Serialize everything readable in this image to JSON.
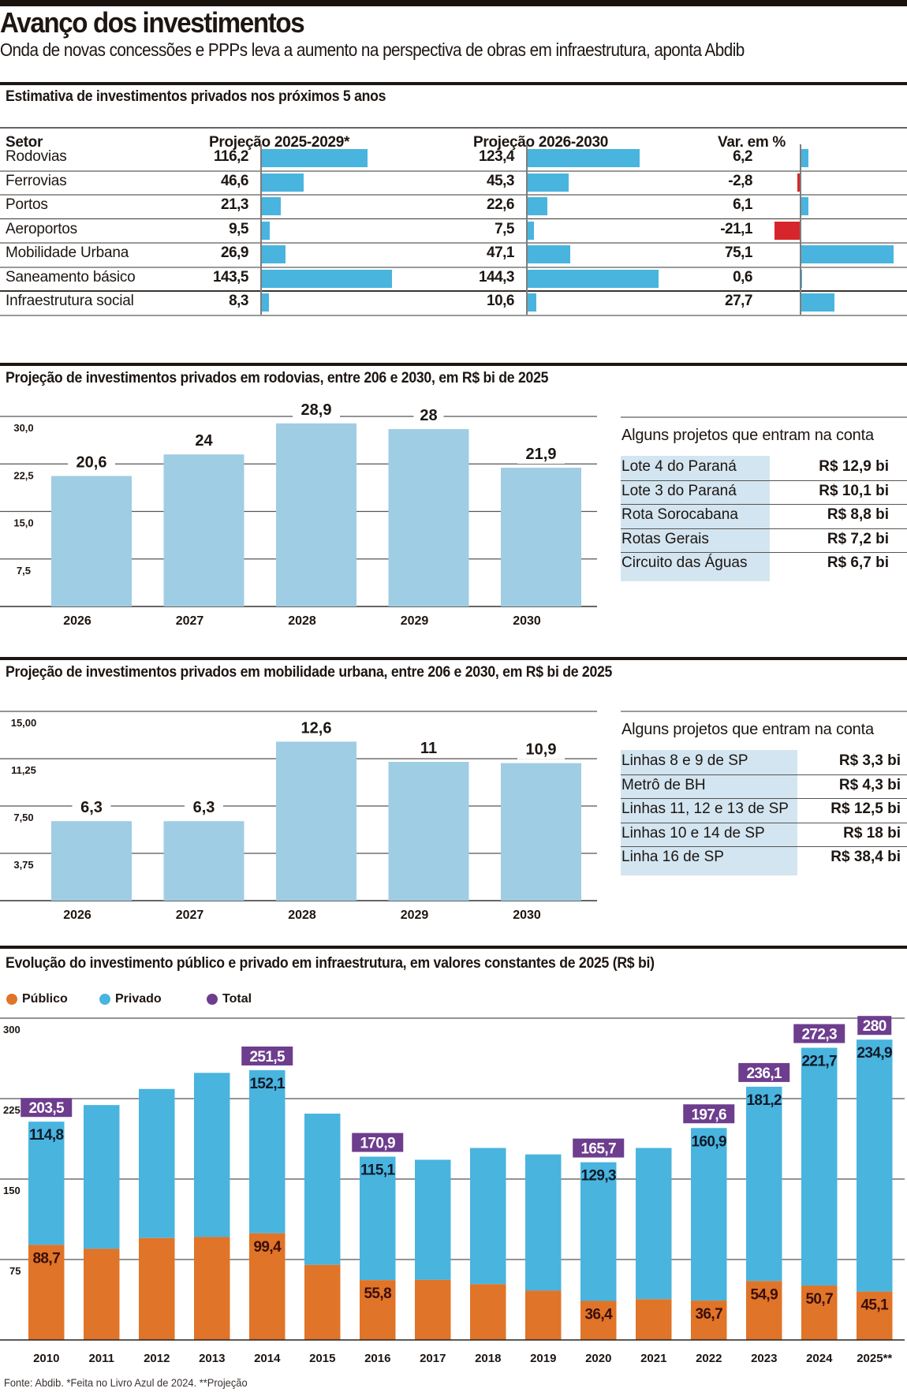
{
  "header": {
    "title": "Avanço dos investimentos",
    "subtitle": "Onda de novas concessões e PPPs leva a aumento na perspectiva de obras em infraestrutura, aponta Abdib"
  },
  "colors": {
    "table_bar": "#49b4de",
    "negative_bar": "#d7262b",
    "light_bar": "#9fcde4",
    "publico": "#e07428",
    "privado": "#49b4de",
    "total": "#6d3d8e",
    "project_bg": "#d3e5f0"
  },
  "sector_table": {
    "title": "Estimativa de investimentos privados nos próximos 5 anos",
    "headers": {
      "sector": "Setor",
      "proj1": "Projeção 2025-2029*",
      "proj2": "Projeção 2026-2030",
      "var": "Var. em %"
    },
    "rows": [
      {
        "sector": "Rodovias",
        "proj1": "116,2",
        "proj1_value": 116.2,
        "proj2": "123,4",
        "proj2_value": 123.4,
        "var": "6,2",
        "var_value": 6.2
      },
      {
        "sector": "Ferrovias",
        "proj1": "46,6",
        "proj1_value": 46.6,
        "proj2": "45,3",
        "proj2_value": 45.3,
        "var": "-2,8",
        "var_value": -2.8
      },
      {
        "sector": "Portos",
        "proj1": "21,3",
        "proj1_value": 21.3,
        "proj2": "22,6",
        "proj2_value": 22.6,
        "var": "6,1",
        "var_value": 6.1
      },
      {
        "sector": "Aeroportos",
        "proj1": "9,5",
        "proj1_value": 9.5,
        "proj2": "7,5",
        "proj2_value": 7.5,
        "var": "-21,1",
        "var_value": -21.1
      },
      {
        "sector": "Mobilidade Urbana",
        "proj1": "26,9",
        "proj1_value": 26.9,
        "proj2": "47,1",
        "proj2_value": 47.1,
        "var": "75,1",
        "var_value": 75.1
      },
      {
        "sector": "Saneamento básico",
        "proj1": "143,5",
        "proj1_value": 143.5,
        "proj2": "144,3",
        "proj2_value": 144.3,
        "var": "0,6",
        "var_value": 0.6
      },
      {
        "sector": "Infraestrutura social",
        "proj1": "8,3",
        "proj1_value": 8.3,
        "proj2": "10,6",
        "proj2_value": 10.6,
        "var": "27,7",
        "var_value": 27.7
      }
    ]
  },
  "rodovias_projects": {
    "heading": "Alguns projetos que entram na conta",
    "items": [
      {
        "name": "Lote 4 do Paraná",
        "value": "R$ 12,9 bi"
      },
      {
        "name": "Lote 3 do Paraná",
        "value": "R$ 10,1 bi"
      },
      {
        "name": "Rota Sorocabana",
        "value": "R$ 8,8 bi"
      },
      {
        "name": "Rotas Gerais",
        "value": "R$ 7,2 bi"
      },
      {
        "name": "Circuito das Águas",
        "value": "R$ 6,7 bi"
      }
    ]
  },
  "mobilidade_projects": {
    "heading": "Alguns projetos que entram na conta",
    "items": [
      {
        "name": "Linhas 8 e 9 de SP",
        "value": "R$ 3,3 bi"
      },
      {
        "name": "Metrô de BH",
        "value": "R$ 4,3 bi"
      },
      {
        "name": "Linhas 11, 12 e 13 de SP",
        "value": "R$ 12,5 bi"
      },
      {
        "name": "Linhas 10 e 14 de SP",
        "value": "R$ 18 bi"
      },
      {
        "name": "Linha 16 de SP",
        "value": "R$ 38,4 bi"
      }
    ]
  },
  "chart_data": [
    {
      "id": "rodovias",
      "type": "bar",
      "title": "Projeção de investimentos privados em rodovias, entre 206 e 2030, em R$ bi de 2025",
      "categories": [
        "2026",
        "2027",
        "2028",
        "2029",
        "2030"
      ],
      "values": [
        20.6,
        24,
        28.9,
        28,
        21.9
      ],
      "value_labels": [
        "20,6",
        "24",
        "28,9",
        "28",
        "21,9"
      ],
      "yticks": [
        7.5,
        15.0,
        22.5,
        30.0
      ],
      "ytick_labels": [
        "7,5",
        "15,0",
        "22,5",
        "30,0"
      ],
      "ylim": [
        0,
        30
      ],
      "xlabel": "",
      "ylabel": "",
      "grid": true
    },
    {
      "id": "mobilidade",
      "type": "bar",
      "title": "Projeção de investimentos privados em mobilidade urbana, entre 206 e 2030, em R$ bi de 2025",
      "categories": [
        "2026",
        "2027",
        "2028",
        "2029",
        "2030"
      ],
      "values": [
        6.3,
        6.3,
        12.6,
        11,
        10.9
      ],
      "value_labels": [
        "6,3",
        "6,3",
        "12,6",
        "11",
        "10,9"
      ],
      "yticks": [
        3.75,
        7.5,
        11.25,
        15.0
      ],
      "ytick_labels": [
        "3,75",
        "7,50",
        "11,25",
        "15,00"
      ],
      "ylim": [
        0,
        15
      ],
      "xlabel": "",
      "ylabel": "",
      "grid": true
    },
    {
      "id": "evolucao",
      "type": "bar",
      "stacked": true,
      "title": "Evolução do investimento público e privado em infraestrutura, em valores constantes de 2025 (R$ bi)",
      "legend": [
        {
          "label": "Público",
          "color": "#e07428"
        },
        {
          "label": "Privado",
          "color": "#49b4de"
        },
        {
          "label": "Total",
          "color": "#6d3d8e"
        }
      ],
      "legend_position": "top-left",
      "categories": [
        "2010",
        "2011",
        "2012",
        "2013",
        "2014",
        "2015",
        "2016",
        "2017",
        "2018",
        "2019",
        "2020",
        "2021",
        "2022",
        "2023",
        "2024",
        "2025**"
      ],
      "series": [
        {
          "name": "Público",
          "values": [
            88.7,
            85,
            95,
            96,
            99.4,
            70,
            55.8,
            56,
            52,
            46,
            36.4,
            38,
            36.7,
            54.9,
            50.7,
            45.1
          ],
          "labels": [
            "88,7",
            "",
            "",
            "",
            "99,4",
            "",
            "55,8",
            "",
            "",
            "",
            "36,4",
            "",
            "36,7",
            "54,9",
            "50,7",
            "45,1"
          ]
        },
        {
          "name": "Privado",
          "values": [
            114.8,
            134,
            139,
            153,
            152.1,
            141,
            115.1,
            112,
            127,
            127,
            129.3,
            141,
            160.9,
            181.2,
            221.7,
            234.9
          ],
          "labels": [
            "114,8",
            "",
            "",
            "",
            "152,1",
            "",
            "115,1",
            "",
            "",
            "",
            "129,3",
            "",
            "160,9",
            "181,2",
            "221,7",
            "234,9"
          ]
        },
        {
          "name": "Total",
          "values": [
            203.5,
            219,
            234,
            249,
            251.5,
            211,
            170.9,
            168,
            179,
            173,
            165.7,
            179,
            197.6,
            236.1,
            272.3,
            280
          ],
          "labels": [
            "203,5",
            "",
            "",
            "",
            "251,5",
            "",
            "170,9",
            "",
            "",
            "",
            "165,7",
            "",
            "197,6",
            "236,1",
            "272,3",
            "280"
          ]
        }
      ],
      "yticks": [
        75,
        150,
        225,
        300
      ],
      "ytick_labels": [
        "75",
        "150",
        "225",
        "300"
      ],
      "ylim": [
        0,
        300
      ],
      "xlabel": "",
      "ylabel": "",
      "grid": true
    }
  ],
  "footer": "Fonte: Abdib. *Feita no Livro Azul de 2024. **Projeção"
}
